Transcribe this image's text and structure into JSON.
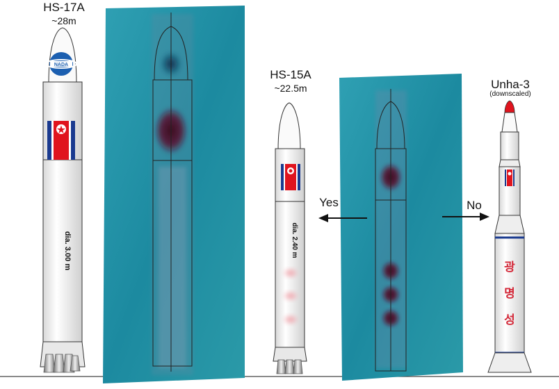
{
  "rockets": {
    "hs17a": {
      "name": "HS-17A",
      "length": "~28m",
      "dia": "dia. 3.00 m",
      "logo": "NADA"
    },
    "hs15a": {
      "name": "HS-15A",
      "length": "~22.5m",
      "dia": "dia. 2.40 m"
    },
    "unha3": {
      "name": "Unha-3",
      "note": "(downscaled)",
      "hangul": [
        "광",
        "명",
        "성"
      ]
    }
  },
  "comparison": {
    "yes_label": "Yes",
    "no_label": "No"
  },
  "colors": {
    "photo_teal": "#1f8fa3",
    "flag_red": "#e0141e",
    "flag_blue": "#1a3a8f",
    "rocket_body": "#f2f2f2"
  },
  "icons": [
    "nada-logo-icon",
    "north-korea-flag-icon",
    "arrow-left-icon",
    "arrow-right-icon",
    "engine-nozzle-icon"
  ]
}
